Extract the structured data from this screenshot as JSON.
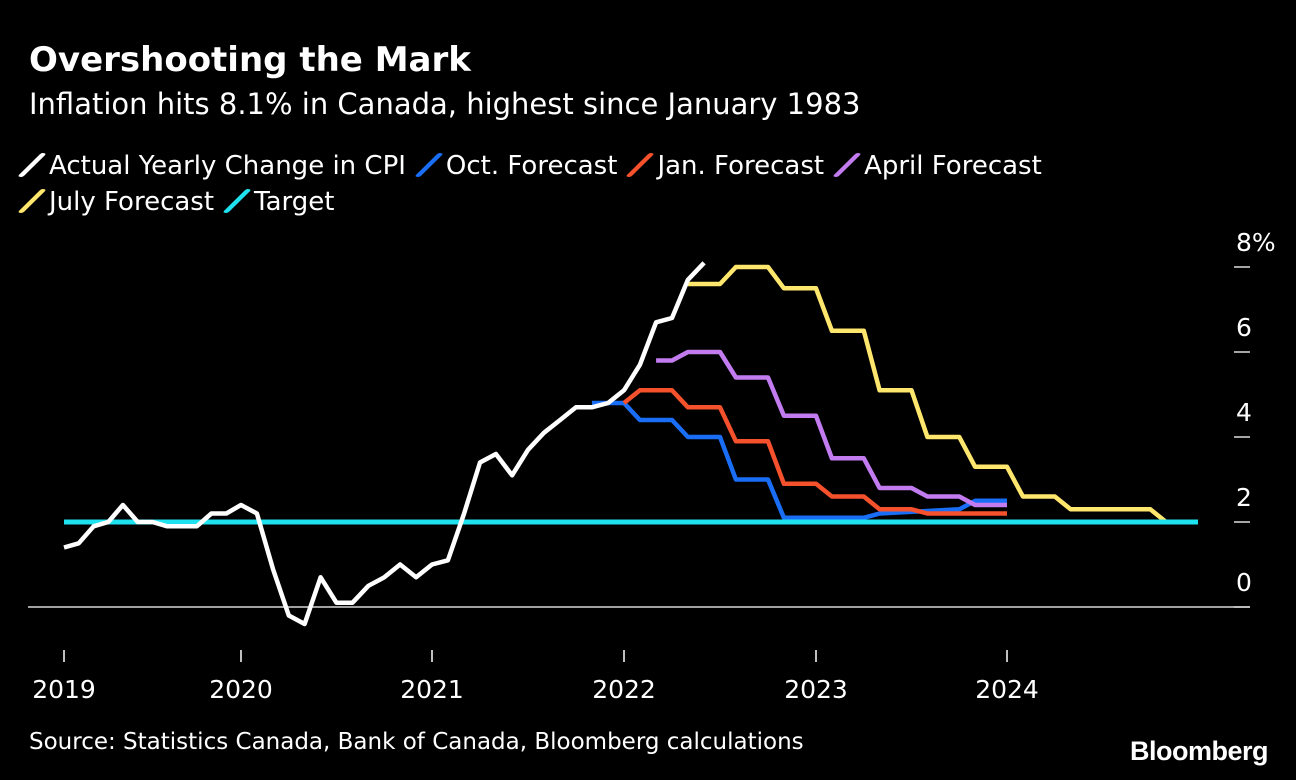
{
  "title": "Overshooting the Mark",
  "subtitle": "Inflation hits 8.1% in Canada, highest since January 1983",
  "source": "Source: Statistics Canada, Bank of Canada, Bloomberg calculations",
  "brand": "Bloomberg",
  "chart_data": {
    "type": "line",
    "x_axis": {
      "range": [
        2019.0,
        2025.0
      ],
      "ticks": [
        2019,
        2020,
        2021,
        2022,
        2023,
        2024
      ],
      "tick_labels": [
        "2019",
        "2020",
        "2021",
        "2022",
        "2023",
        "2024"
      ]
    },
    "y_axis": {
      "range": [
        -0.8,
        8.6
      ],
      "ticks": [
        0,
        2,
        4,
        6,
        8
      ],
      "tick_labels": [
        "0",
        "2",
        "4",
        "6",
        "8%"
      ],
      "position": "right"
    },
    "grid": false,
    "legend": "top-left",
    "series": [
      {
        "name": "Actual Yearly Change in CPI",
        "color": "#ffffff",
        "points": [
          [
            2019.0,
            1.4
          ],
          [
            2019.083,
            1.5
          ],
          [
            2019.167,
            1.9
          ],
          [
            2019.25,
            2.0
          ],
          [
            2019.333,
            2.4
          ],
          [
            2019.417,
            2.0
          ],
          [
            2019.5,
            2.0
          ],
          [
            2019.583,
            1.9
          ],
          [
            2019.667,
            1.9
          ],
          [
            2019.75,
            1.9
          ],
          [
            2019.833,
            2.2
          ],
          [
            2019.917,
            2.2
          ],
          [
            2020.0,
            2.4
          ],
          [
            2020.083,
            2.2
          ],
          [
            2020.167,
            0.9
          ],
          [
            2020.25,
            -0.2
          ],
          [
            2020.333,
            -0.4
          ],
          [
            2020.417,
            0.7
          ],
          [
            2020.5,
            0.1
          ],
          [
            2020.583,
            0.1
          ],
          [
            2020.667,
            0.5
          ],
          [
            2020.75,
            0.7
          ],
          [
            2020.833,
            1.0
          ],
          [
            2020.917,
            0.7
          ],
          [
            2021.0,
            1.0
          ],
          [
            2021.083,
            1.1
          ],
          [
            2021.167,
            2.2
          ],
          [
            2021.25,
            3.4
          ],
          [
            2021.333,
            3.6
          ],
          [
            2021.417,
            3.1
          ],
          [
            2021.5,
            3.7
          ],
          [
            2021.583,
            4.1
          ],
          [
            2021.667,
            4.4
          ],
          [
            2021.75,
            4.7
          ],
          [
            2021.833,
            4.7
          ],
          [
            2021.917,
            4.8
          ],
          [
            2022.0,
            5.1
          ],
          [
            2022.083,
            5.7
          ],
          [
            2022.167,
            6.7
          ],
          [
            2022.25,
            6.8
          ],
          [
            2022.333,
            7.7
          ],
          [
            2022.417,
            8.1
          ]
        ]
      },
      {
        "name": "Oct. Forecast",
        "color": "#1a6ef5",
        "points": [
          [
            2021.833,
            4.8
          ],
          [
            2022.0,
            4.8
          ],
          [
            2022.083,
            4.4
          ],
          [
            2022.25,
            4.4
          ],
          [
            2022.333,
            4.0
          ],
          [
            2022.5,
            4.0
          ],
          [
            2022.583,
            3.0
          ],
          [
            2022.75,
            3.0
          ],
          [
            2022.833,
            2.1
          ],
          [
            2023.25,
            2.1
          ],
          [
            2023.333,
            2.2
          ],
          [
            2023.75,
            2.3
          ],
          [
            2023.833,
            2.5
          ],
          [
            2024.0,
            2.5
          ]
        ]
      },
      {
        "name": "Jan. Forecast",
        "color": "#f4512c",
        "points": [
          [
            2022.0,
            4.8
          ],
          [
            2022.083,
            5.1
          ],
          [
            2022.25,
            5.1
          ],
          [
            2022.333,
            4.7
          ],
          [
            2022.5,
            4.7
          ],
          [
            2022.583,
            3.9
          ],
          [
            2022.75,
            3.9
          ],
          [
            2022.833,
            2.9
          ],
          [
            2023.0,
            2.9
          ],
          [
            2023.083,
            2.6
          ],
          [
            2023.25,
            2.6
          ],
          [
            2023.333,
            2.3
          ],
          [
            2023.5,
            2.3
          ],
          [
            2023.583,
            2.2
          ],
          [
            2024.0,
            2.2
          ]
        ]
      },
      {
        "name": "April Forecast",
        "color": "#c27cf0",
        "points": [
          [
            2022.167,
            5.8
          ],
          [
            2022.25,
            5.8
          ],
          [
            2022.333,
            6.0
          ],
          [
            2022.5,
            6.0
          ],
          [
            2022.583,
            5.4
          ],
          [
            2022.75,
            5.4
          ],
          [
            2022.833,
            4.5
          ],
          [
            2023.0,
            4.5
          ],
          [
            2023.083,
            3.5
          ],
          [
            2023.25,
            3.5
          ],
          [
            2023.333,
            2.8
          ],
          [
            2023.5,
            2.8
          ],
          [
            2023.583,
            2.6
          ],
          [
            2023.75,
            2.6
          ],
          [
            2023.833,
            2.4
          ],
          [
            2024.0,
            2.4
          ]
        ]
      },
      {
        "name": "July Forecast",
        "color": "#ffe66d",
        "points": [
          [
            2022.333,
            7.6
          ],
          [
            2022.5,
            7.6
          ],
          [
            2022.583,
            8.0
          ],
          [
            2022.75,
            8.0
          ],
          [
            2022.833,
            7.5
          ],
          [
            2023.0,
            7.5
          ],
          [
            2023.083,
            6.5
          ],
          [
            2023.25,
            6.5
          ],
          [
            2023.333,
            5.1
          ],
          [
            2023.5,
            5.1
          ],
          [
            2023.583,
            4.0
          ],
          [
            2023.75,
            4.0
          ],
          [
            2023.833,
            3.3
          ],
          [
            2024.0,
            3.3
          ],
          [
            2024.083,
            2.6
          ],
          [
            2024.25,
            2.6
          ],
          [
            2024.333,
            2.3
          ],
          [
            2024.75,
            2.3
          ],
          [
            2024.833,
            2.0
          ],
          [
            2025.0,
            2.0
          ]
        ]
      },
      {
        "name": "Target",
        "color": "#1fe2f0",
        "points": [
          [
            2019.0,
            2.0
          ],
          [
            2025.0,
            2.0
          ]
        ]
      }
    ]
  }
}
